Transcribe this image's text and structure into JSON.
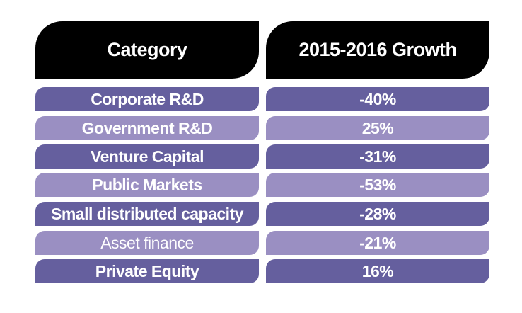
{
  "chart_data": {
    "type": "table",
    "columns": [
      "Category",
      "2015-2016 Growth"
    ],
    "rows": [
      [
        "Corporate R&D",
        "-40%"
      ],
      [
        "Government R&D",
        "25%"
      ],
      [
        "Venture Capital",
        "-31%"
      ],
      [
        "Public Markets",
        "-53%"
      ],
      [
        "Small distributed capacity",
        "-28%"
      ],
      [
        "Asset finance",
        "-21%"
      ],
      [
        "Private Equity",
        "16%"
      ]
    ],
    "values": [
      -40,
      25,
      -31,
      -53,
      -28,
      -21,
      16
    ],
    "units": "%"
  },
  "colors": {
    "header_bg": "#000000",
    "row_dark": "#655f9e",
    "row_light": "#9a8fc2",
    "text": "#ffffff"
  }
}
